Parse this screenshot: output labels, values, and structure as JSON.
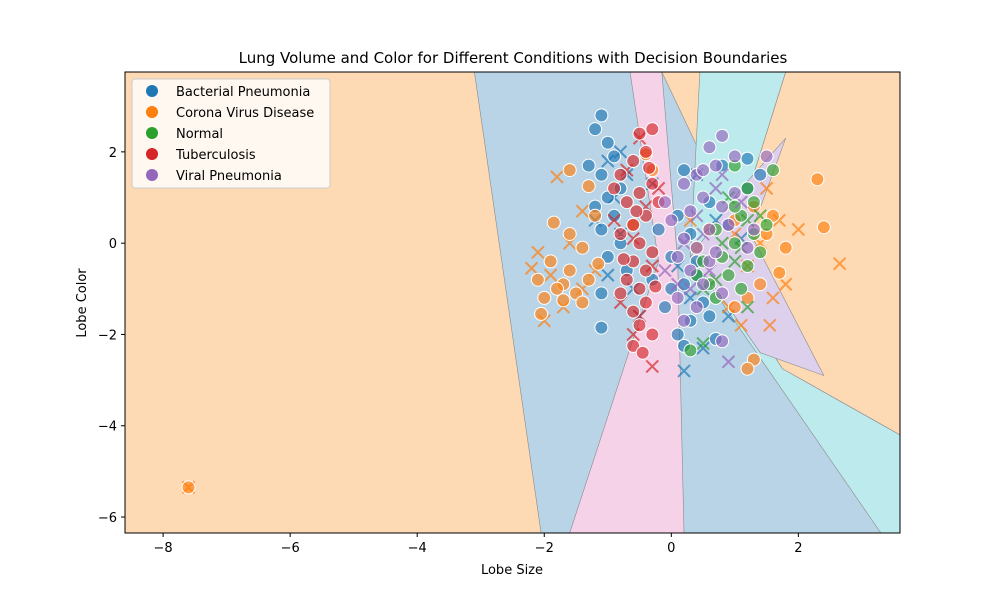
{
  "chart_data": {
    "type": "scatter",
    "title": "Lung Volume and Color for Different Conditions with Decision Boundaries",
    "xlabel": "Lobe Size",
    "ylabel": "Lobe Color",
    "xlim": [
      -8.6,
      3.6
    ],
    "ylim": [
      -6.35,
      3.75
    ],
    "xticks": [
      -8,
      -6,
      -4,
      -2,
      0,
      2
    ],
    "yticks": [
      -6,
      -4,
      -2,
      0,
      2
    ],
    "xtick_labels": [
      "−8",
      "−6",
      "−4",
      "−2",
      "0",
      "2"
    ],
    "ytick_labels": [
      "−6",
      "−4",
      "−2",
      "0",
      "2"
    ],
    "legend_position": "upper-left",
    "grid": false,
    "colors": {
      "Bacterial Pneumonia": "#1f77b4",
      "Corona Virus Disease": "#ff7f0e",
      "Normal": "#2ca02c",
      "Tuberculosis": "#d62728",
      "Viral Pneumonia": "#9467bd"
    },
    "region_colors": {
      "Bacterial Pneumonia": "#b9d4e6",
      "Corona Virus Disease": "#fdd9b4",
      "Normal": "#bdebed",
      "Tuberculosis": "#f5d2e8",
      "Viral Pneumonia": "#ddd0ec"
    },
    "regions": [
      {
        "class": "Bacterial Pneumonia",
        "points": [
          [
            -3.1,
            3.75
          ],
          [
            -0.15,
            3.75
          ],
          [
            3.3,
            -6.35
          ],
          [
            -2.05,
            -6.35
          ]
        ]
      },
      {
        "class": "Tuberculosis",
        "points": [
          [
            -0.65,
            3.75
          ],
          [
            -0.15,
            3.75
          ],
          [
            0.1,
            -0.4
          ],
          [
            0.2,
            -6.35
          ],
          [
            -1.6,
            -6.35
          ],
          [
            -0.2,
            -0.4
          ]
        ]
      },
      {
        "class": "Normal",
        "points": [
          [
            0.45,
            3.75
          ],
          [
            1.8,
            3.75
          ],
          [
            0.8,
            -0.7
          ],
          [
            1.75,
            -2.75
          ],
          [
            3.6,
            -4.2
          ],
          [
            3.6,
            -6.35
          ],
          [
            3.3,
            -6.35
          ],
          [
            0.3,
            -0.3
          ]
        ]
      },
      {
        "class": "Corona Virus Disease",
        "points": [
          [
            1.8,
            3.75
          ],
          [
            3.6,
            3.75
          ],
          [
            3.6,
            -4.2
          ],
          [
            1.75,
            -2.75
          ],
          [
            0.8,
            -0.7
          ]
        ]
      },
      {
        "class": "Viral Pneumonia",
        "points": [
          [
            1.8,
            2.3
          ],
          [
            1.25,
            0.2
          ],
          [
            2.4,
            -2.9
          ],
          [
            1.4,
            -2.4
          ],
          [
            0.7,
            -1.0
          ],
          [
            0.3,
            -0.3
          ],
          [
            1.1,
            1.2
          ]
        ]
      }
    ],
    "series": [
      {
        "name": "Bacterial Pneumonia",
        "points": [
          [
            -1.1,
            2.8
          ],
          [
            -1.2,
            2.5
          ],
          [
            -1.0,
            2.2
          ],
          [
            -0.9,
            1.9
          ],
          [
            -1.3,
            1.7
          ],
          [
            -1.1,
            1.5
          ],
          [
            -0.8,
            1.2
          ],
          [
            -1.0,
            1.0
          ],
          [
            -1.2,
            0.8
          ],
          [
            -0.9,
            0.6
          ],
          [
            -1.1,
            0.3
          ],
          [
            -0.8,
            0.0
          ],
          [
            -1.0,
            -0.3
          ],
          [
            -0.7,
            -0.6
          ],
          [
            -1.1,
            -1.1
          ],
          [
            -1.1,
            -1.85
          ],
          [
            0.1,
            0.6
          ],
          [
            0.3,
            0.2
          ],
          [
            0.0,
            -0.3
          ],
          [
            0.2,
            -0.9
          ],
          [
            -0.1,
            -1.4
          ],
          [
            0.3,
            -1.7
          ],
          [
            0.1,
            -2.0
          ],
          [
            0.2,
            -2.25
          ],
          [
            0.0,
            -1.0
          ],
          [
            0.4,
            -0.7
          ],
          [
            0.5,
            -1.3
          ],
          [
            0.6,
            -1.6
          ],
          [
            0.2,
            1.6
          ],
          [
            1.2,
            1.85
          ],
          [
            1.4,
            1.5
          ],
          [
            1.2,
            1.2
          ],
          [
            0.9,
            0.4
          ],
          [
            0.4,
            -0.4
          ],
          [
            -0.2,
            0.3
          ],
          [
            0.6,
            0.9
          ],
          [
            0.8,
            1.7
          ],
          [
            -0.3,
            -0.8
          ],
          [
            0.7,
            -2.1
          ]
        ],
        "crosses": [
          [
            -0.8,
            2.0
          ],
          [
            -1.0,
            1.8
          ],
          [
            -0.7,
            1.5
          ],
          [
            -0.9,
            1.0
          ],
          [
            -1.2,
            0.5
          ],
          [
            -0.8,
            0.2
          ],
          [
            -1.0,
            -0.7
          ],
          [
            -0.6,
            -1.0
          ],
          [
            0.2,
            -2.8
          ],
          [
            0.5,
            -2.3
          ],
          [
            0.3,
            -1.2
          ],
          [
            0.1,
            -0.5
          ],
          [
            0.9,
            -1.6
          ],
          [
            1.1,
            0.1
          ],
          [
            0.7,
            0.5
          ],
          [
            -0.3,
            1.3
          ],
          [
            0.4,
            1.5
          ],
          [
            -0.5,
            -1.6
          ]
        ]
      },
      {
        "name": "Corona Virus Disease",
        "points": [
          [
            -1.6,
            1.6
          ],
          [
            -1.3,
            1.25
          ],
          [
            -1.2,
            0.6
          ],
          [
            -1.85,
            0.45
          ],
          [
            -1.6,
            0.2
          ],
          [
            -1.4,
            -0.1
          ],
          [
            -1.9,
            -0.4
          ],
          [
            -2.1,
            -0.8
          ],
          [
            -1.7,
            -0.9
          ],
          [
            -1.5,
            -1.1
          ],
          [
            -2.0,
            -1.2
          ],
          [
            -1.4,
            -1.3
          ],
          [
            -1.8,
            -1.0
          ],
          [
            -1.6,
            -0.6
          ],
          [
            -1.3,
            -0.8
          ],
          [
            -1.7,
            -1.25
          ],
          [
            -2.05,
            -1.55
          ],
          [
            -1.15,
            -0.45
          ],
          [
            -0.6,
            0.4
          ],
          [
            -0.3,
            1.6
          ],
          [
            -0.4,
            1.95
          ],
          [
            2.3,
            1.4
          ],
          [
            2.4,
            0.35
          ],
          [
            1.8,
            -0.1
          ],
          [
            1.7,
            -0.65
          ],
          [
            1.5,
            0.2
          ],
          [
            1.3,
            0.8
          ],
          [
            1.0,
            0.5
          ],
          [
            1.4,
            -0.9
          ],
          [
            1.2,
            -1.2
          ],
          [
            1.0,
            -1.4
          ],
          [
            1.3,
            -2.55
          ],
          [
            1.2,
            -2.75
          ],
          [
            0.4,
            -0.1
          ],
          [
            0.6,
            0.3
          ],
          [
            1.6,
            0.6
          ],
          [
            -7.6,
            -5.35
          ]
        ],
        "crosses": [
          [
            -1.8,
            1.45
          ],
          [
            -1.4,
            0.7
          ],
          [
            -1.6,
            0.0
          ],
          [
            -2.1,
            -0.2
          ],
          [
            -2.2,
            -0.55
          ],
          [
            -1.9,
            -0.7
          ],
          [
            -1.7,
            -1.4
          ],
          [
            -1.4,
            -1.0
          ],
          [
            -2.0,
            -1.7
          ],
          [
            -1.2,
            -0.6
          ],
          [
            2.0,
            0.3
          ],
          [
            1.7,
            0.5
          ],
          [
            1.8,
            -0.9
          ],
          [
            1.6,
            -1.2
          ],
          [
            1.55,
            -1.8
          ],
          [
            2.65,
            -0.45
          ],
          [
            1.1,
            -1.8
          ],
          [
            0.9,
            -1.4
          ],
          [
            1.2,
            -0.5
          ],
          [
            1.4,
            0.0
          ],
          [
            1.0,
            0.2
          ],
          [
            1.5,
            1.2
          ],
          [
            0.3,
            0.5
          ],
          [
            -7.6,
            -5.35
          ]
        ]
      },
      {
        "name": "Normal",
        "points": [
          [
            1.6,
            1.6
          ],
          [
            1.2,
            1.2
          ],
          [
            1.0,
            1.7
          ],
          [
            1.3,
            0.9
          ],
          [
            1.1,
            0.6
          ],
          [
            1.5,
            0.4
          ],
          [
            1.3,
            0.2
          ],
          [
            1.0,
            0.0
          ],
          [
            0.8,
            -0.3
          ],
          [
            1.2,
            -0.5
          ],
          [
            0.9,
            -0.7
          ],
          [
            0.6,
            -0.9
          ],
          [
            1.1,
            -1.0
          ],
          [
            0.7,
            -1.2
          ],
          [
            0.4,
            -0.7
          ],
          [
            0.5,
            -0.4
          ],
          [
            1.4,
            -0.2
          ],
          [
            0.3,
            -2.35
          ],
          [
            1.0,
            0.8
          ],
          [
            0.7,
            0.3
          ]
        ],
        "crosses": [
          [
            0.9,
            1.0
          ],
          [
            1.2,
            0.5
          ],
          [
            0.8,
            0.0
          ],
          [
            1.0,
            -0.4
          ],
          [
            0.7,
            -0.8
          ],
          [
            1.2,
            -1.4
          ],
          [
            0.5,
            -2.2
          ],
          [
            0.5,
            -1.0
          ],
          [
            1.4,
            0.6
          ],
          [
            1.1,
            -0.1
          ]
        ]
      },
      {
        "name": "Tuberculosis",
        "points": [
          [
            -0.5,
            2.4
          ],
          [
            -0.3,
            2.5
          ],
          [
            -0.4,
            2.0
          ],
          [
            -0.6,
            1.8
          ],
          [
            -0.8,
            1.5
          ],
          [
            -0.3,
            1.3
          ],
          [
            -0.5,
            1.1
          ],
          [
            -0.7,
            0.9
          ],
          [
            -0.4,
            0.6
          ],
          [
            -0.6,
            0.4
          ],
          [
            -0.8,
            0.2
          ],
          [
            -0.5,
            0.0
          ],
          [
            -0.3,
            -0.2
          ],
          [
            -0.6,
            -0.4
          ],
          [
            -0.4,
            -0.6
          ],
          [
            -0.7,
            -0.8
          ],
          [
            -0.5,
            -1.0
          ],
          [
            -0.8,
            -1.1
          ],
          [
            -0.4,
            -1.3
          ],
          [
            -0.6,
            -1.5
          ],
          [
            -0.5,
            -1.8
          ],
          [
            -0.3,
            -2.0
          ],
          [
            -0.6,
            -2.25
          ],
          [
            -0.45,
            -2.4
          ],
          [
            -0.9,
            1.2
          ],
          [
            -0.2,
            0.9
          ],
          [
            -0.35,
            1.65
          ],
          [
            -0.75,
            -0.35
          ],
          [
            -0.25,
            -0.95
          ],
          [
            -0.55,
            0.7
          ]
        ],
        "crosses": [
          [
            -0.5,
            2.3
          ],
          [
            -0.7,
            1.6
          ],
          [
            -0.4,
            0.8
          ],
          [
            -0.6,
            0.1
          ],
          [
            -0.3,
            -0.5
          ],
          [
            -0.8,
            -1.3
          ],
          [
            -0.5,
            -1.6
          ],
          [
            -0.3,
            -2.7
          ],
          [
            -0.6,
            -2.0
          ],
          [
            -0.9,
            0.5
          ],
          [
            -0.2,
            1.2
          ]
        ]
      },
      {
        "name": "Viral Pneumonia",
        "points": [
          [
            0.8,
            2.35
          ],
          [
            0.6,
            2.1
          ],
          [
            1.0,
            1.9
          ],
          [
            0.7,
            1.7
          ],
          [
            0.4,
            1.5
          ],
          [
            0.2,
            1.3
          ],
          [
            0.5,
            1.0
          ],
          [
            0.8,
            0.8
          ],
          [
            0.3,
            0.7
          ],
          [
            0.0,
            0.5
          ],
          [
            0.6,
            0.3
          ],
          [
            0.2,
            0.1
          ],
          [
            0.4,
            -0.1
          ],
          [
            0.1,
            -0.3
          ],
          [
            0.6,
            -0.4
          ],
          [
            0.3,
            -0.6
          ],
          [
            0.5,
            -0.9
          ],
          [
            0.1,
            -1.2
          ],
          [
            0.8,
            -1.1
          ],
          [
            0.4,
            -1.4
          ],
          [
            0.2,
            -1.7
          ],
          [
            1.3,
            0.3
          ],
          [
            1.0,
            1.1
          ],
          [
            0.8,
            -2.15
          ],
          [
            1.5,
            1.9
          ],
          [
            0.9,
            0.4
          ],
          [
            -0.1,
            0.9
          ],
          [
            0.5,
            1.6
          ],
          [
            1.2,
            -0.1
          ],
          [
            0.7,
            -0.2
          ]
        ],
        "crosses": [
          [
            0.7,
            1.2
          ],
          [
            0.4,
            0.6
          ],
          [
            0.2,
            0.0
          ],
          [
            0.6,
            -0.6
          ],
          [
            0.3,
            -1.0
          ],
          [
            0.9,
            -2.6
          ],
          [
            0.1,
            -0.9
          ],
          [
            0.5,
            0.2
          ],
          [
            1.1,
            0.9
          ],
          [
            -0.1,
            -0.6
          ],
          [
            0.8,
            1.5
          ]
        ]
      }
    ]
  }
}
